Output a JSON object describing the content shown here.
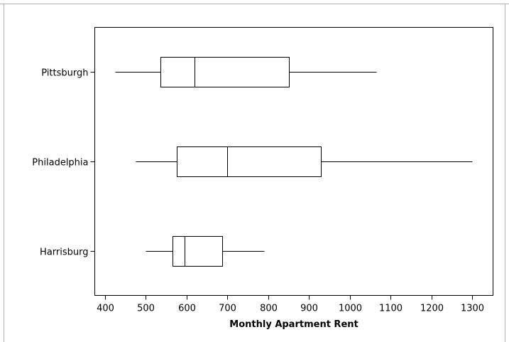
{
  "chart_data": {
    "type": "boxplot",
    "orientation": "horizontal",
    "title": "",
    "xlabel": "Monthly Apartment Rent",
    "ylabel": "",
    "xlim": [
      375,
      1335
    ],
    "xticks": [
      400,
      500,
      600,
      700,
      800,
      900,
      1000,
      1100,
      1200,
      1300
    ],
    "grid": false,
    "categories": [
      "Pittsburgh",
      "Philadelphia",
      "Harrisburg"
    ],
    "series": [
      {
        "name": "Pittsburgh",
        "whisker_low": 425,
        "q1": 535,
        "median": 620,
        "q3": 850,
        "whisker_high": 1065
      },
      {
        "name": "Philadelphia",
        "whisker_low": 475,
        "q1": 575,
        "median": 700,
        "q3": 930,
        "whisker_high": 1300
      },
      {
        "name": "Harrisburg",
        "whisker_low": 500,
        "q1": 565,
        "median": 595,
        "q3": 688,
        "whisker_high": 790
      }
    ]
  }
}
